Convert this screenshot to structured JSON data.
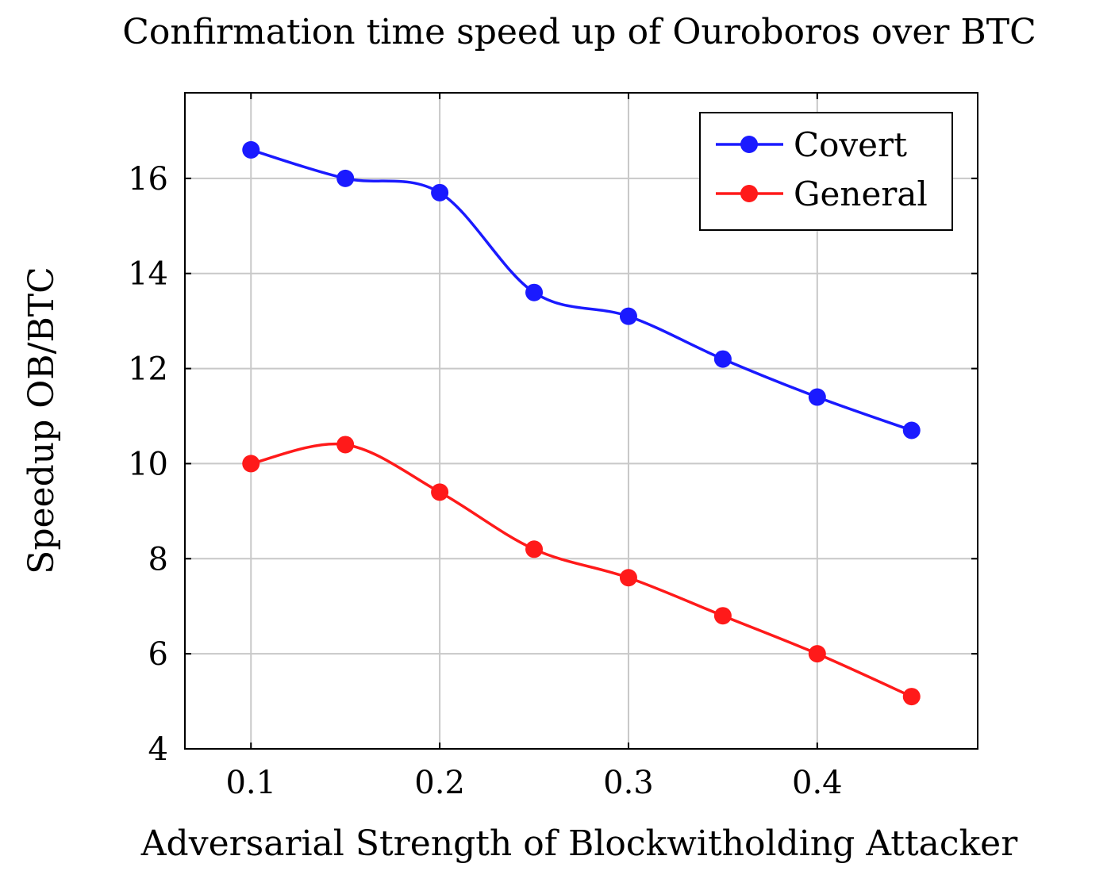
{
  "chart_data": {
    "type": "line",
    "title": "Confirmation time speed up of Ouroboros over BTC",
    "xlabel": "Adversarial Strength of Blockwitholding Attacker",
    "ylabel": "Speedup OB/BTC",
    "xlim": [
      0.065,
      0.485
    ],
    "ylim": [
      4,
      17.8
    ],
    "x_ticks": [
      0.1,
      0.2,
      0.3,
      0.4
    ],
    "x_tick_labels": [
      "0.1",
      "0.2",
      "0.3",
      "0.4"
    ],
    "y_ticks": [
      4,
      6,
      8,
      10,
      12,
      14,
      16
    ],
    "y_tick_labels": [
      "4",
      "6",
      "8",
      "10",
      "12",
      "14",
      "16"
    ],
    "grid": true,
    "legend_position": "top-right",
    "x": [
      0.1,
      0.15,
      0.2,
      0.25,
      0.3,
      0.35,
      0.4,
      0.45
    ],
    "series": [
      {
        "name": "Covert",
        "color": "#1a1aff",
        "values": [
          16.6,
          16.0,
          15.7,
          13.6,
          13.1,
          12.2,
          11.4,
          10.7
        ]
      },
      {
        "name": "General",
        "color": "#ff1a1a",
        "values": [
          10.0,
          10.4,
          9.4,
          8.2,
          7.6,
          6.8,
          6.0,
          5.1
        ]
      }
    ]
  }
}
